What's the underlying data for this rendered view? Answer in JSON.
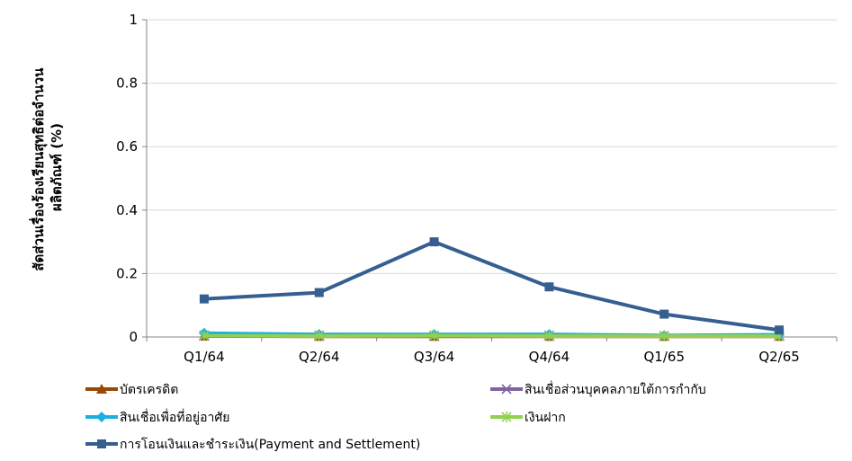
{
  "chart_data": {
    "type": "line",
    "title": "",
    "xlabel": "",
    "ylabel_lines": [
      "สัดส่วนเรื่องร้องเรียนสุทธิต่อจำนวน",
      "ผลิตภัณฑ์ (%)"
    ],
    "ylim": [
      0,
      1
    ],
    "yticks": [
      "0",
      "0.2",
      "0.4",
      "0.6",
      "0.8",
      "1"
    ],
    "grid": true,
    "legend_position": "bottom",
    "categories": [
      "Q1/64",
      "Q2/64",
      "Q3/64",
      "Q4/64",
      "Q1/65",
      "Q2/65"
    ],
    "series": [
      {
        "name": "บัตรเครดิต",
        "marker": "triangle",
        "color": "#984807",
        "values": [
          0.003,
          0.002,
          0.002,
          0.002,
          0.002,
          0.002
        ]
      },
      {
        "name": "สินเชื่อส่วนบุคคลภายใต้การกำกับ",
        "marker": "x",
        "color": "#8064a2",
        "values": [
          0.006,
          0.005,
          0.005,
          0.005,
          0.004,
          0.005
        ]
      },
      {
        "name": "สินเชื่อเพื่อที่อยู่อาศัย",
        "marker": "diamond",
        "color": "#1ab0e0",
        "values": [
          0.012,
          0.008,
          0.008,
          0.008,
          0.005,
          0.007
        ]
      },
      {
        "name": "เงินฝาก",
        "marker": "star",
        "color": "#92d050",
        "values": [
          0.004,
          0.003,
          0.004,
          0.003,
          0.003,
          0.003
        ]
      },
      {
        "name": "การโอนเงินและชำระเงิน(Payment and Settlement)",
        "marker": "square",
        "color": "#365f91",
        "values": [
          0.12,
          0.14,
          0.3,
          0.158,
          0.072,
          0.022
        ]
      }
    ]
  }
}
